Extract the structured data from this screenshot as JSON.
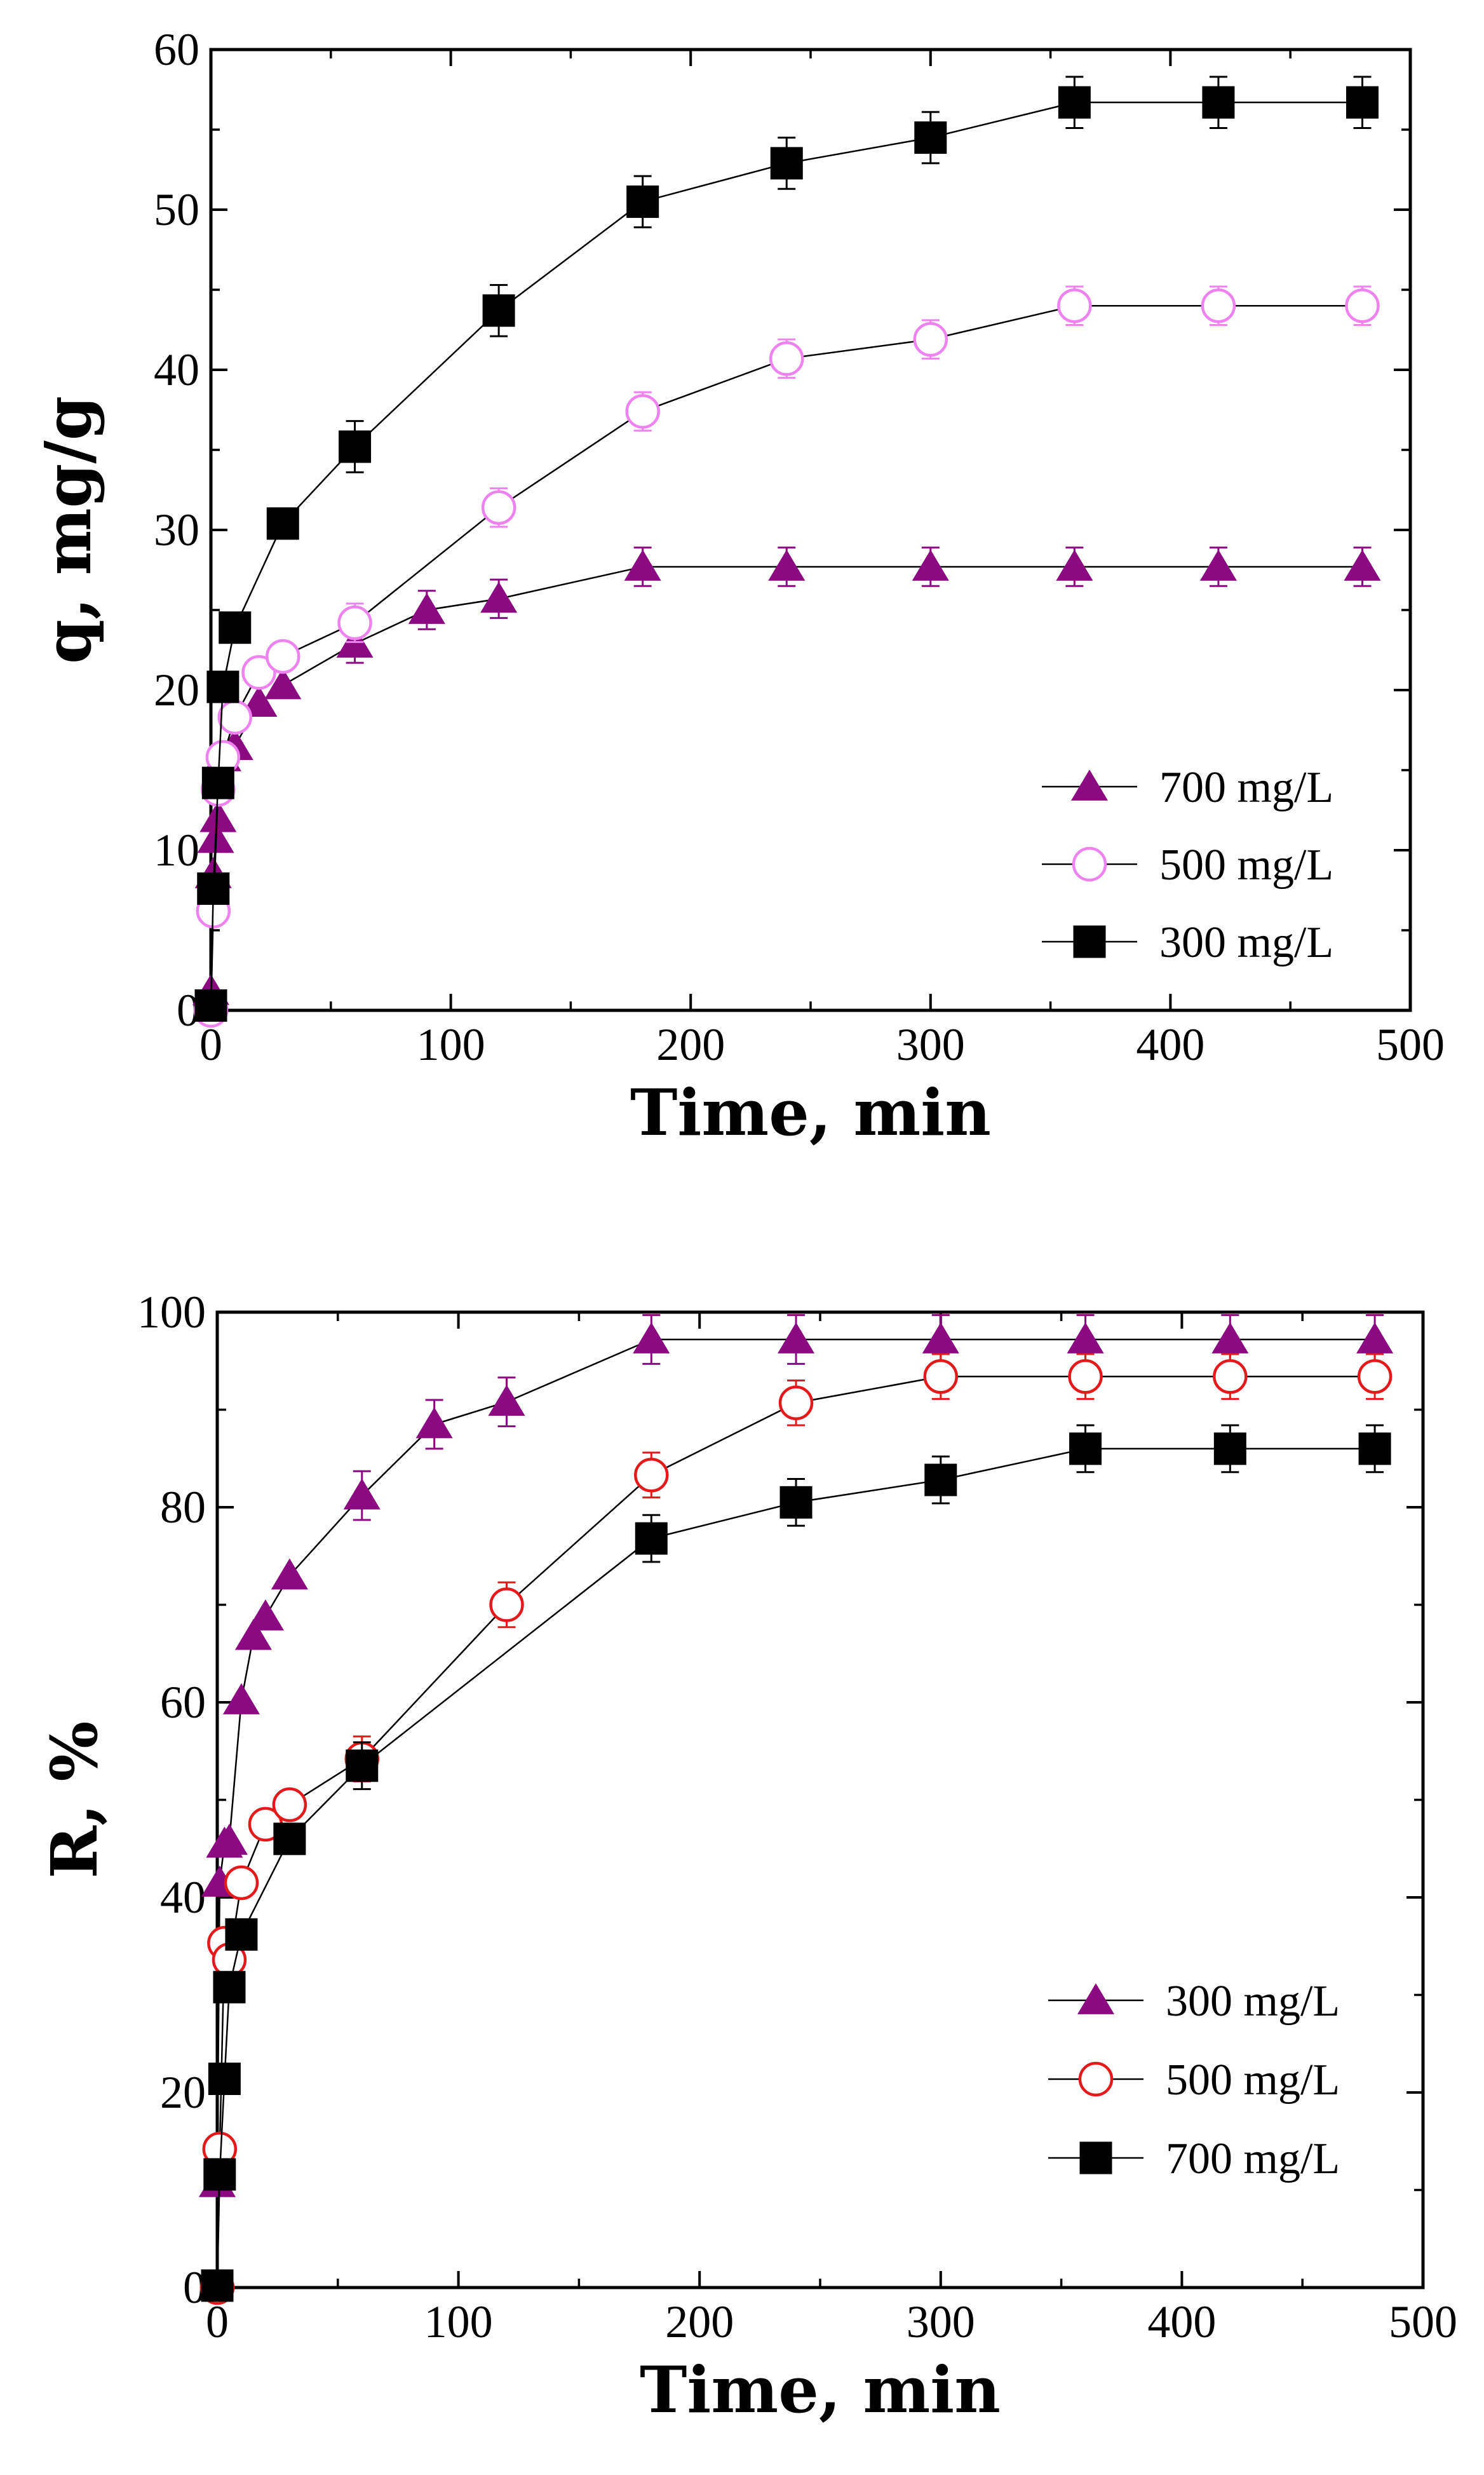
{
  "chart_data": [
    {
      "type": "line",
      "xlabel": "Time, min",
      "ylabel": "q, mg/g",
      "xlim": [
        0,
        500
      ],
      "ylim": [
        0,
        60
      ],
      "x_ticks": [
        0,
        100,
        200,
        300,
        400,
        500
      ],
      "y_ticks": [
        0,
        10,
        20,
        30,
        40,
        50,
        60
      ],
      "grid": false,
      "legend": "bottom-right",
      "series": [
        {
          "name": "700 mg/L",
          "marker": "triangle",
          "filled": true,
          "color": "#8b0a82",
          "x": [
            0,
            1,
            2,
            3,
            5,
            10,
            20,
            30,
            60,
            90,
            120,
            180,
            240,
            300,
            360,
            420,
            480
          ],
          "y": [
            1.2,
            8.5,
            10.7,
            12.0,
            15.8,
            16.5,
            19.2,
            20.3,
            22.9,
            25.0,
            25.7,
            27.7,
            27.7,
            27.7,
            27.7,
            27.7,
            27.7
          ],
          "err": 1.2
        },
        {
          "name": "500 mg/L",
          "marker": "circle",
          "filled": false,
          "color": "#ee82ee",
          "x": [
            0,
            1,
            3,
            5,
            10,
            20,
            30,
            60,
            120,
            180,
            240,
            300,
            360,
            420,
            480
          ],
          "y": [
            0,
            6.2,
            13.8,
            15.8,
            18.3,
            21.1,
            22.1,
            24.2,
            31.4,
            37.4,
            40.7,
            41.9,
            44.0,
            44.0,
            44.0
          ],
          "err": 1.2
        },
        {
          "name": "300 mg/L",
          "marker": "square",
          "filled": true,
          "color": "#000000",
          "x": [
            0,
            1,
            3,
            5,
            10,
            30,
            60,
            120,
            180,
            240,
            300,
            360,
            420,
            480
          ],
          "y": [
            0.3,
            7.6,
            14.2,
            20.2,
            23.9,
            30.4,
            35.2,
            43.7,
            50.5,
            52.9,
            54.5,
            56.7,
            56.7,
            56.7
          ],
          "err": 1.6
        }
      ]
    },
    {
      "type": "line",
      "xlabel": "Time, min",
      "ylabel": "R, %",
      "xlim": [
        0,
        500
      ],
      "ylim": [
        0,
        100
      ],
      "x_ticks": [
        0,
        100,
        200,
        300,
        400,
        500
      ],
      "y_ticks": [
        0,
        20,
        40,
        60,
        80,
        100
      ],
      "grid": false,
      "legend": "bottom-right",
      "series": [
        {
          "name": "300 mg/L",
          "marker": "triangle",
          "filled": true,
          "color": "#8b0a82",
          "x": [
            0,
            1,
            3,
            5,
            10,
            15,
            20,
            30,
            60,
            90,
            120,
            180,
            240,
            300,
            360,
            420,
            480
          ],
          "y": [
            10.7,
            41.5,
            45.5,
            45.8,
            60.2,
            66.8,
            68.8,
            73.0,
            81.2,
            88.5,
            90.8,
            97.2,
            97.2,
            97.2,
            97.2,
            97.2,
            97.2
          ],
          "err": 2.5
        },
        {
          "name": "500 mg/L",
          "marker": "circle",
          "filled": false,
          "color": "#e31a1c",
          "x": [
            0,
            1,
            3,
            5,
            10,
            20,
            30,
            60,
            120,
            180,
            240,
            300,
            360,
            420,
            480
          ],
          "y": [
            0,
            14.2,
            35.3,
            33.6,
            41.5,
            47.5,
            49.5,
            54.2,
            70.0,
            83.3,
            90.7,
            93.4,
            93.4,
            93.4,
            93.4
          ],
          "err": 2.3
        },
        {
          "name": "700 mg/L",
          "marker": "square",
          "filled": true,
          "color": "#000000",
          "x": [
            0,
            1,
            3,
            5,
            10,
            30,
            60,
            180,
            240,
            300,
            360,
            420,
            480
          ],
          "y": [
            0.2,
            11.6,
            21.4,
            30.8,
            36.2,
            46.0,
            53.5,
            76.8,
            80.5,
            82.8,
            86.0,
            86.0,
            86.0
          ],
          "err": 2.4
        }
      ]
    }
  ]
}
